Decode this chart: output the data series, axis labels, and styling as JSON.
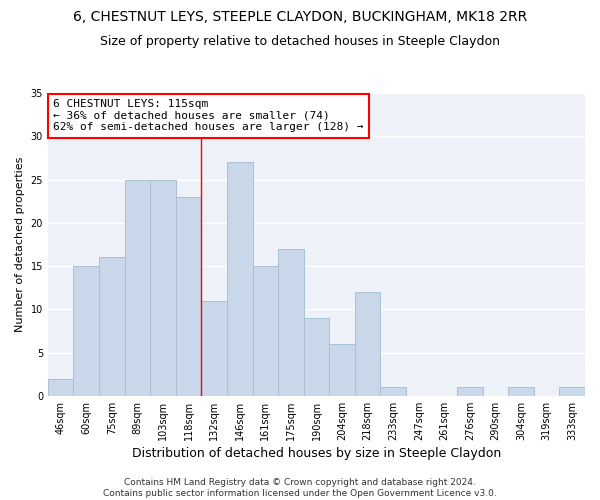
{
  "title1": "6, CHESTNUT LEYS, STEEPLE CLAYDON, BUCKINGHAM, MK18 2RR",
  "title2": "Size of property relative to detached houses in Steeple Claydon",
  "xlabel": "Distribution of detached houses by size in Steeple Claydon",
  "ylabel": "Number of detached properties",
  "categories": [
    "46sqm",
    "60sqm",
    "75sqm",
    "89sqm",
    "103sqm",
    "118sqm",
    "132sqm",
    "146sqm",
    "161sqm",
    "175sqm",
    "190sqm",
    "204sqm",
    "218sqm",
    "233sqm",
    "247sqm",
    "261sqm",
    "276sqm",
    "290sqm",
    "304sqm",
    "319sqm",
    "333sqm"
  ],
  "values": [
    2,
    15,
    16,
    25,
    25,
    23,
    11,
    27,
    15,
    17,
    9,
    6,
    12,
    1,
    0,
    0,
    1,
    0,
    1,
    0,
    1
  ],
  "bar_color": "#c8d8ea",
  "bar_edge_color": "#a8c0d0",
  "red_line_index": 5,
  "annotation_text": "6 CHESTNUT LEYS: 115sqm\n← 36% of detached houses are smaller (74)\n62% of semi-detached houses are larger (128) →",
  "annotation_box_color": "white",
  "annotation_box_edge": "red",
  "ylim": [
    0,
    35
  ],
  "yticks": [
    0,
    5,
    10,
    15,
    20,
    25,
    30,
    35
  ],
  "background_color": "#eef2f8",
  "footer_text": "Contains HM Land Registry data © Crown copyright and database right 2024.\nContains public sector information licensed under the Open Government Licence v3.0.",
  "title1_fontsize": 10,
  "title2_fontsize": 9,
  "xlabel_fontsize": 9,
  "ylabel_fontsize": 8,
  "tick_fontsize": 7,
  "annotation_fontsize": 8,
  "footer_fontsize": 6.5
}
